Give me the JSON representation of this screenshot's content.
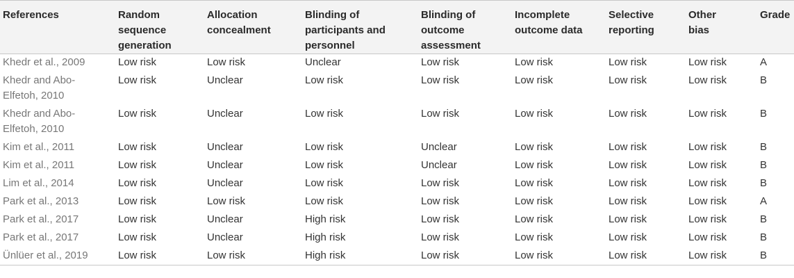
{
  "headers": [
    "References",
    "Random sequence generation",
    "Allocation concealment",
    "Blinding of participants and personnel",
    "Blinding of outcome assessment",
    "Incomplete outcome data",
    "Selective reporting",
    "Other bias",
    "Grade"
  ],
  "rows": [
    [
      "Khedr et al., 2009",
      "Low risk",
      "Low risk",
      "Unclear",
      "Low risk",
      "Low risk",
      "Low risk",
      "Low risk",
      "A"
    ],
    [
      "Khedr and Abo-Elfetoh, 2010",
      "Low risk",
      "Unclear",
      "Low risk",
      "Low risk",
      "Low risk",
      "Low risk",
      "Low risk",
      "B"
    ],
    [
      "Khedr and Abo-Elfetoh, 2010",
      "Low risk",
      "Unclear",
      "Low risk",
      "Low risk",
      "Low risk",
      "Low risk",
      "Low risk",
      "B"
    ],
    [
      "Kim et al., 2011",
      "Low risk",
      "Unclear",
      "Low risk",
      "Unclear",
      "Low risk",
      "Low risk",
      "Low risk",
      "B"
    ],
    [
      "Kim et al., 2011",
      "Low risk",
      "Unclear",
      "Low risk",
      "Unclear",
      "Low risk",
      "Low risk",
      "Low risk",
      "B"
    ],
    [
      "Lim et al., 2014",
      "Low risk",
      "Unclear",
      "Low risk",
      "Low risk",
      "Low risk",
      "Low risk",
      "Low risk",
      "B"
    ],
    [
      "Park et al., 2013",
      "Low risk",
      "Low risk",
      "Low risk",
      "Low risk",
      "Low risk",
      "Low risk",
      "Low risk",
      "A"
    ],
    [
      "Park et al., 2017",
      "Low risk",
      "Unclear",
      "High risk",
      "Low risk",
      "Low risk",
      "Low risk",
      "Low risk",
      "B"
    ],
    [
      "Park et al., 2017",
      "Low risk",
      "Unclear",
      "High risk",
      "Low risk",
      "Low risk",
      "Low risk",
      "Low risk",
      "B"
    ],
    [
      "Ünlüer et al., 2019",
      "Low risk",
      "Low risk",
      "High risk",
      "Low risk",
      "Low risk",
      "Low risk",
      "Low risk",
      "B"
    ]
  ]
}
